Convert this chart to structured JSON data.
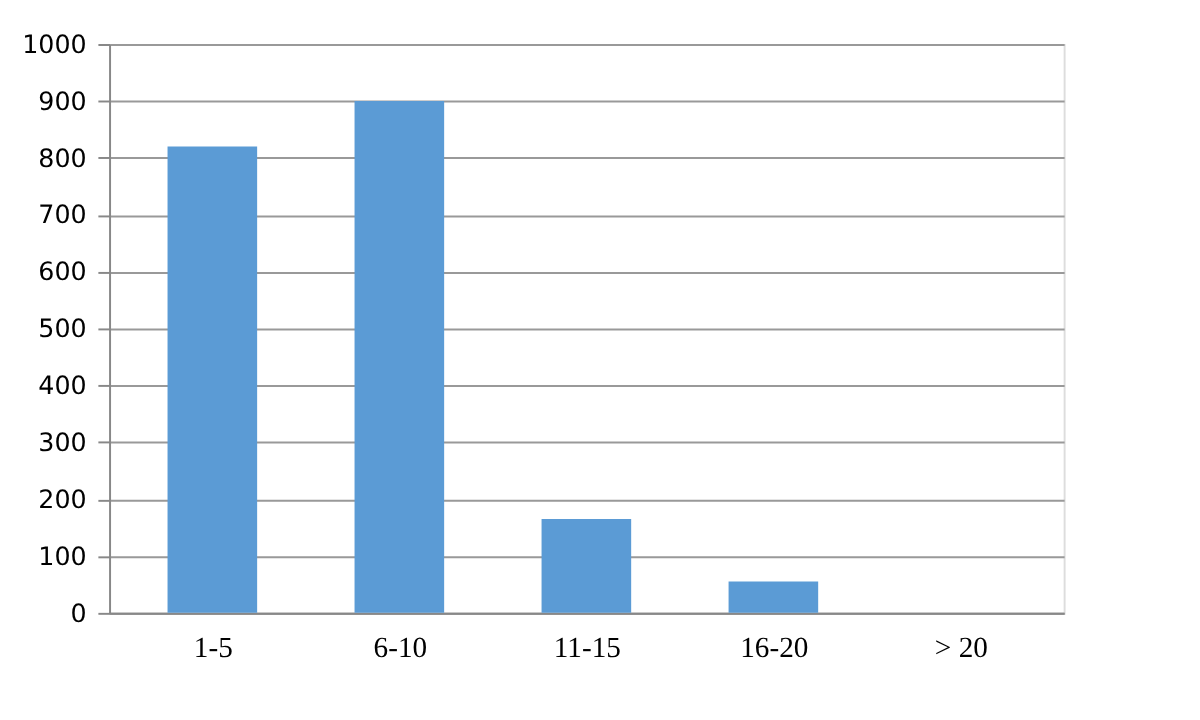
{
  "chart_data": {
    "type": "bar",
    "categories": [
      "1-5",
      "6-10",
      "11-15",
      "16-20",
      "> 20"
    ],
    "series": [
      {
        "color": "#5b9bd5",
        "values": [
          820,
          900,
          165,
          55,
          0
        ]
      }
    ],
    "ylim": [
      0,
      1000
    ],
    "yticks": [
      0,
      100,
      200,
      300,
      400,
      500,
      600,
      700,
      800,
      900,
      1000
    ],
    "grid": "y"
  }
}
